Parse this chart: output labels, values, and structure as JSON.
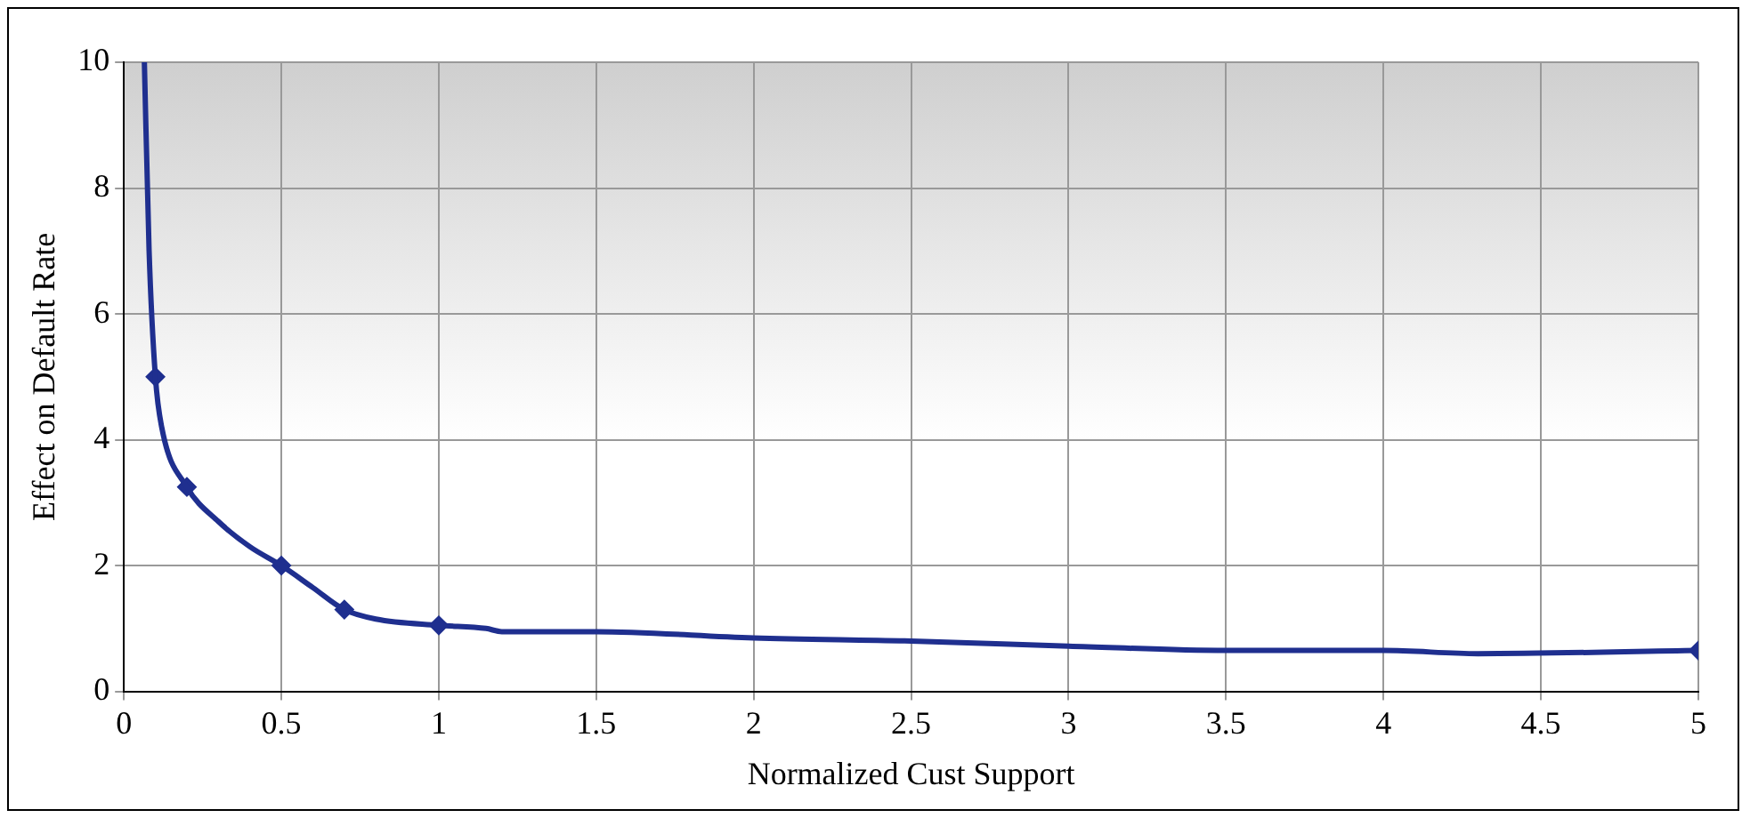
{
  "chart_data": {
    "type": "line",
    "xlabel": "Normalized Cust Support",
    "ylabel": "Effect on Default Rate",
    "xlim": [
      0,
      5
    ],
    "xticks": [
      0,
      0.5,
      1,
      1.5,
      2,
      2.5,
      3,
      3.5,
      4,
      4.5,
      5
    ],
    "ylim": [
      0,
      10
    ],
    "yticks": [
      0,
      2,
      4,
      6,
      8,
      10
    ],
    "grid": true,
    "legend": false,
    "series": [
      {
        "type": "line",
        "marker": "none",
        "color": "#1f2f8f",
        "x": [
          0.065,
          0.08,
          0.1,
          0.12,
          0.2,
          0.3,
          0.4,
          0.5,
          0.6,
          0.7,
          0.8,
          1,
          1.15,
          1.2,
          1.5,
          2,
          2.5,
          3,
          3.5,
          4,
          4.3,
          5
        ],
        "values": [
          10,
          7,
          5,
          4.2,
          3.25,
          2.7,
          2.3,
          2,
          1.65,
          1.3,
          1.15,
          1.05,
          1,
          0.95,
          0.95,
          0.85,
          0.8,
          0.72,
          0.65,
          0.65,
          0.6,
          0.65
        ]
      },
      {
        "type": "scatter",
        "marker": "diamond",
        "color": "#1f2f8f",
        "x": [
          0.1,
          0.2,
          0.5,
          0.7,
          1,
          5
        ],
        "values": [
          5,
          3.25,
          2,
          1.3,
          1.05,
          0.65
        ]
      }
    ]
  }
}
